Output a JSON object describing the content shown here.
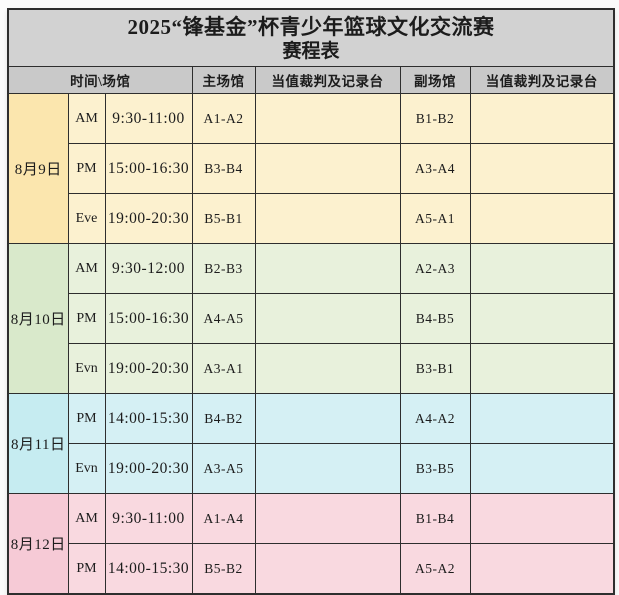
{
  "page": {
    "background": "#fbfbfb",
    "border_color": "#2e2e2e"
  },
  "table": {
    "title_line1": "2025“锋基金”杯青少年篮球文化交流赛",
    "title_line2": "赛程表",
    "title_bg": "#d2d2d2",
    "header_bg": "#c9c9c9",
    "headers": {
      "time_venue": "时间\\场馆",
      "main_venue": "主场馆",
      "main_referee": "当值裁判及记录台",
      "sub_venue": "副场馆",
      "sub_referee": "当值裁判及记录台"
    },
    "groups": [
      {
        "date": "8月9日",
        "date_bg": "#fbe6ae",
        "row_bg": "#fcf1cf",
        "rows": [
          {
            "period": "AM",
            "time": "9:30-11:00",
            "main": "A1-A2",
            "main_referee": "",
            "sub": "B1-B2",
            "sub_referee": ""
          },
          {
            "period": "PM",
            "time": "15:00-16:30",
            "main": "B3-B4",
            "main_referee": "",
            "sub": "A3-A4",
            "sub_referee": ""
          },
          {
            "period": "Eve",
            "time": "19:00-20:30",
            "main": "B5-B1",
            "main_referee": "",
            "sub": "A5-A1",
            "sub_referee": ""
          }
        ]
      },
      {
        "date": "8月10日",
        "date_bg": "#d9e9cb",
        "row_bg": "#e8f1dc",
        "rows": [
          {
            "period": "AM",
            "time": "9:30-12:00",
            "main": "B2-B3",
            "main_referee": "",
            "sub": "A2-A3",
            "sub_referee": ""
          },
          {
            "period": "PM",
            "time": "15:00-16:30",
            "main": "A4-A5",
            "main_referee": "",
            "sub": "B4-B5",
            "sub_referee": ""
          },
          {
            "period": "Evn",
            "time": "19:00-20:30",
            "main": "A3-A1",
            "main_referee": "",
            "sub": "B3-B1",
            "sub_referee": ""
          }
        ]
      },
      {
        "date": "8月11日",
        "date_bg": "#c6ecf1",
        "row_bg": "#d5f0f4",
        "rows": [
          {
            "period": "PM",
            "time": "14:00-15:30",
            "main": "B4-B2",
            "main_referee": "",
            "sub": "A4-A2",
            "sub_referee": ""
          },
          {
            "period": "Evn",
            "time": "19:00-20:30",
            "main": "A3-A5",
            "main_referee": "",
            "sub": "B3-B5",
            "sub_referee": ""
          }
        ]
      },
      {
        "date": "8月12日",
        "date_bg": "#f6cad6",
        "row_bg": "#f9d9e0",
        "rows": [
          {
            "period": "AM",
            "time": "9:30-11:00",
            "main": "A1-A4",
            "main_referee": "",
            "sub": "B1-B4",
            "sub_referee": ""
          },
          {
            "period": "PM",
            "time": "14:00-15:30",
            "main": "B5-B2",
            "main_referee": "",
            "sub": "A5-A2",
            "sub_referee": ""
          }
        ]
      }
    ]
  }
}
